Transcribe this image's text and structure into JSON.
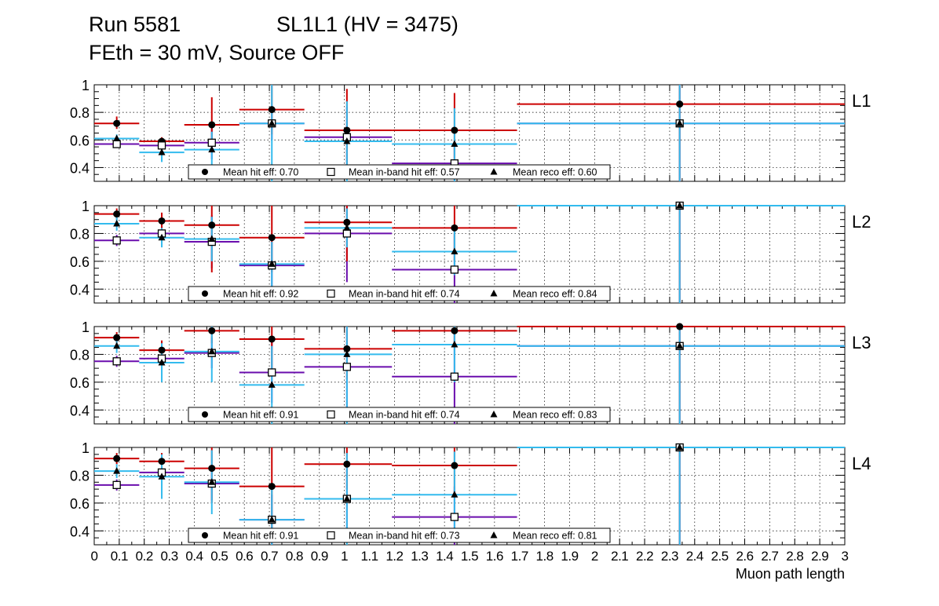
{
  "header": {
    "run": "Run 5581",
    "sl": "SL1L1 (HV = 3475)",
    "line2": "FEth = 30 mV, Source OFF"
  },
  "colors": {
    "hit": "#cc0000",
    "inband": "#6a0dad",
    "reco": "#33bbee",
    "grid": "#000000"
  },
  "chart_data": {
    "type": "scatter",
    "xlabel": "Muon path length",
    "xlim": [
      0,
      3
    ],
    "ylim": [
      0.3,
      1.0
    ],
    "x_tick_labels": [
      "0",
      "0.1",
      "0.2",
      "0.3",
      "0.4",
      "0.5",
      "0.6",
      "0.7",
      "0.8",
      "0.9",
      "1",
      "1.1",
      "1.2",
      "1.3",
      "1.4",
      "1.5",
      "1.6",
      "1.7",
      "1.8",
      "1.9",
      "2",
      "2.1",
      "2.2",
      "2.3",
      "2.4",
      "2.5",
      "2.6",
      "2.7",
      "2.8",
      "2.9",
      "3"
    ],
    "y_tick_labels": [
      "0.4",
      "0.6",
      "0.8",
      "1"
    ],
    "legend_labels": {
      "hit": "Mean hit  eff:",
      "inband": "Mean in-band hit eff:",
      "reco": "Mean reco eff:"
    },
    "panels": [
      {
        "name": "L1",
        "mean_hit": "0.70",
        "mean_inband": "0.57",
        "mean_reco": "0.60",
        "hit": [
          {
            "x": 0.09,
            "x0": 0.0,
            "x1": 0.18,
            "y": 0.72,
            "elo": 0.68,
            "ehi": 0.77
          },
          {
            "x": 0.27,
            "x0": 0.18,
            "x1": 0.36,
            "y": 0.59,
            "elo": 0.56,
            "ehi": 0.62
          },
          {
            "x": 0.47,
            "x0": 0.36,
            "x1": 0.58,
            "y": 0.71,
            "elo": 0.51,
            "ehi": 0.91
          },
          {
            "x": 0.71,
            "x0": 0.58,
            "x1": 0.84,
            "y": 0.82,
            "elo": 0.64,
            "ehi": 1.0
          },
          {
            "x": 1.01,
            "x0": 0.84,
            "x1": 1.19,
            "y": 0.67,
            "elo": 0.37,
            "ehi": 0.97
          },
          {
            "x": 1.44,
            "x0": 1.19,
            "x1": 1.69,
            "y": 0.67,
            "elo": 0.4,
            "ehi": 0.94
          },
          {
            "x": 2.34,
            "x0": 1.69,
            "x1": 3.0,
            "y": 0.86,
            "elo": 0.3,
            "ehi": 1.0
          }
        ],
        "inband": [
          {
            "x": 0.09,
            "x0": 0.0,
            "x1": 0.18,
            "y": 0.57,
            "elo": 0.55,
            "ehi": 0.6
          },
          {
            "x": 0.27,
            "x0": 0.18,
            "x1": 0.36,
            "y": 0.56,
            "elo": 0.53,
            "ehi": 0.59
          },
          {
            "x": 0.47,
            "x0": 0.36,
            "x1": 0.58,
            "y": 0.58,
            "elo": 0.46,
            "ehi": 0.7
          },
          {
            "x": 0.71,
            "x0": 0.58,
            "x1": 0.84,
            "y": 0.72,
            "elo": 0.6,
            "ehi": 0.84
          },
          {
            "x": 1.01,
            "x0": 0.84,
            "x1": 1.19,
            "y": 0.62,
            "elo": 0.4,
            "ehi": 0.84
          },
          {
            "x": 1.44,
            "x0": 1.19,
            "x1": 1.69,
            "y": 0.43,
            "elo": 0.3,
            "ehi": 0.56
          },
          {
            "x": 2.34,
            "x0": 1.69,
            "x1": 3.0,
            "y": 0.72,
            "elo": 0.3,
            "ehi": 1.0
          }
        ],
        "reco": [
          {
            "x": 0.09,
            "x0": 0.0,
            "x1": 0.18,
            "y": 0.61,
            "elo": 0.58,
            "ehi": 0.64
          },
          {
            "x": 0.27,
            "x0": 0.18,
            "x1": 0.36,
            "y": 0.51,
            "elo": 0.44,
            "ehi": 0.58
          },
          {
            "x": 0.47,
            "x0": 0.36,
            "x1": 0.58,
            "y": 0.53,
            "elo": 0.4,
            "ehi": 0.66
          },
          {
            "x": 0.71,
            "x0": 0.58,
            "x1": 0.84,
            "y": 0.72,
            "elo": 0.3,
            "ehi": 1.0
          },
          {
            "x": 1.01,
            "x0": 0.84,
            "x1": 1.19,
            "y": 0.59,
            "elo": 0.3,
            "ehi": 0.88
          },
          {
            "x": 1.44,
            "x0": 1.19,
            "x1": 1.69,
            "y": 0.57,
            "elo": 0.3,
            "ehi": 0.83
          },
          {
            "x": 2.34,
            "x0": 1.69,
            "x1": 3.0,
            "y": 0.72,
            "elo": 0.3,
            "ehi": 1.0
          }
        ]
      },
      {
        "name": "L2",
        "mean_hit": "0.92",
        "mean_inband": "0.74",
        "mean_reco": "0.84",
        "hit": [
          {
            "x": 0.09,
            "x0": 0.0,
            "x1": 0.18,
            "y": 0.94,
            "elo": 0.9,
            "ehi": 0.98
          },
          {
            "x": 0.27,
            "x0": 0.18,
            "x1": 0.36,
            "y": 0.89,
            "elo": 0.83,
            "ehi": 0.95
          },
          {
            "x": 0.47,
            "x0": 0.36,
            "x1": 0.58,
            "y": 0.86,
            "elo": 0.52,
            "ehi": 1.0
          },
          {
            "x": 0.71,
            "x0": 0.58,
            "x1": 0.84,
            "y": 0.77,
            "elo": 0.52,
            "ehi": 1.0
          },
          {
            "x": 1.01,
            "x0": 0.84,
            "x1": 1.19,
            "y": 0.88,
            "elo": 0.6,
            "ehi": 1.0
          },
          {
            "x": 1.44,
            "x0": 1.19,
            "x1": 1.69,
            "y": 0.84,
            "elo": 0.6,
            "ehi": 1.0
          },
          {
            "x": 2.34,
            "x0": 1.69,
            "x1": 3.0,
            "y": 1.0,
            "elo": 0.3,
            "ehi": 1.0
          }
        ],
        "inband": [
          {
            "x": 0.09,
            "x0": 0.0,
            "x1": 0.18,
            "y": 0.75,
            "elo": 0.71,
            "ehi": 0.79
          },
          {
            "x": 0.27,
            "x0": 0.18,
            "x1": 0.36,
            "y": 0.8,
            "elo": 0.75,
            "ehi": 0.85
          },
          {
            "x": 0.47,
            "x0": 0.36,
            "x1": 0.58,
            "y": 0.74,
            "elo": 0.55,
            "ehi": 0.93
          },
          {
            "x": 0.71,
            "x0": 0.58,
            "x1": 0.84,
            "y": 0.57,
            "elo": 0.4,
            "ehi": 0.74
          },
          {
            "x": 1.01,
            "x0": 0.84,
            "x1": 1.19,
            "y": 0.8,
            "elo": 0.45,
            "ehi": 1.0
          },
          {
            "x": 1.44,
            "x0": 1.19,
            "x1": 1.69,
            "y": 0.54,
            "elo": 0.3,
            "ehi": 0.8
          },
          {
            "x": 2.34,
            "x0": 1.69,
            "x1": 3.0,
            "y": 1.0,
            "elo": 0.3,
            "ehi": 1.0
          }
        ],
        "reco": [
          {
            "x": 0.09,
            "x0": 0.0,
            "x1": 0.18,
            "y": 0.87,
            "elo": 0.82,
            "ehi": 0.92
          },
          {
            "x": 0.27,
            "x0": 0.18,
            "x1": 0.36,
            "y": 0.77,
            "elo": 0.7,
            "ehi": 0.84
          },
          {
            "x": 0.47,
            "x0": 0.36,
            "x1": 0.58,
            "y": 0.76,
            "elo": 0.6,
            "ehi": 0.92
          },
          {
            "x": 0.71,
            "x0": 0.58,
            "x1": 0.84,
            "y": 0.58,
            "elo": 0.42,
            "ehi": 0.74
          },
          {
            "x": 1.01,
            "x0": 0.84,
            "x1": 1.19,
            "y": 0.84,
            "elo": 0.7,
            "ehi": 0.98
          },
          {
            "x": 1.44,
            "x0": 1.19,
            "x1": 1.69,
            "y": 0.67,
            "elo": 0.5,
            "ehi": 0.84
          },
          {
            "x": 2.34,
            "x0": 1.69,
            "x1": 3.0,
            "y": 1.0,
            "elo": 0.3,
            "ehi": 1.0
          }
        ]
      },
      {
        "name": "L3",
        "mean_hit": "0.91",
        "mean_inband": "0.74",
        "mean_reco": "0.83",
        "hit": [
          {
            "x": 0.09,
            "x0": 0.0,
            "x1": 0.18,
            "y": 0.92,
            "elo": 0.88,
            "ehi": 0.96
          },
          {
            "x": 0.27,
            "x0": 0.18,
            "x1": 0.36,
            "y": 0.83,
            "elo": 0.76,
            "ehi": 0.9
          },
          {
            "x": 0.47,
            "x0": 0.36,
            "x1": 0.58,
            "y": 0.97,
            "elo": 0.88,
            "ehi": 1.0
          },
          {
            "x": 0.71,
            "x0": 0.58,
            "x1": 0.84,
            "y": 0.91,
            "elo": 0.7,
            "ehi": 1.0
          },
          {
            "x": 1.01,
            "x0": 0.84,
            "x1": 1.19,
            "y": 0.84,
            "elo": 0.62,
            "ehi": 1.0
          },
          {
            "x": 1.44,
            "x0": 1.19,
            "x1": 1.69,
            "y": 0.97,
            "elo": 0.85,
            "ehi": 1.0
          },
          {
            "x": 2.34,
            "x0": 1.69,
            "x1": 3.0,
            "y": 1.0,
            "elo": 0.3,
            "ehi": 1.0
          }
        ],
        "inband": [
          {
            "x": 0.09,
            "x0": 0.0,
            "x1": 0.18,
            "y": 0.75,
            "elo": 0.71,
            "ehi": 0.79
          },
          {
            "x": 0.27,
            "x0": 0.18,
            "x1": 0.36,
            "y": 0.77,
            "elo": 0.72,
            "ehi": 0.82
          },
          {
            "x": 0.47,
            "x0": 0.36,
            "x1": 0.58,
            "y": 0.81,
            "elo": 0.7,
            "ehi": 0.92
          },
          {
            "x": 0.71,
            "x0": 0.58,
            "x1": 0.84,
            "y": 0.67,
            "elo": 0.45,
            "ehi": 0.89
          },
          {
            "x": 1.01,
            "x0": 0.84,
            "x1": 1.19,
            "y": 0.71,
            "elo": 0.4,
            "ehi": 1.0
          },
          {
            "x": 1.44,
            "x0": 1.19,
            "x1": 1.69,
            "y": 0.64,
            "elo": 0.3,
            "ehi": 0.95
          },
          {
            "x": 2.34,
            "x0": 1.69,
            "x1": 3.0,
            "y": 0.86,
            "elo": 0.3,
            "ehi": 1.0
          }
        ],
        "reco": [
          {
            "x": 0.09,
            "x0": 0.0,
            "x1": 0.18,
            "y": 0.86,
            "elo": 0.81,
            "ehi": 0.91
          },
          {
            "x": 0.27,
            "x0": 0.18,
            "x1": 0.36,
            "y": 0.74,
            "elo": 0.6,
            "ehi": 0.88
          },
          {
            "x": 0.47,
            "x0": 0.36,
            "x1": 0.58,
            "y": 0.82,
            "elo": 0.6,
            "ehi": 1.0
          },
          {
            "x": 0.71,
            "x0": 0.58,
            "x1": 0.84,
            "y": 0.58,
            "elo": 0.3,
            "ehi": 0.86
          },
          {
            "x": 1.01,
            "x0": 0.84,
            "x1": 1.19,
            "y": 0.8,
            "elo": 0.3,
            "ehi": 1.0
          },
          {
            "x": 1.44,
            "x0": 1.19,
            "x1": 1.69,
            "y": 0.87,
            "elo": 0.6,
            "ehi": 1.0
          },
          {
            "x": 2.34,
            "x0": 1.69,
            "x1": 3.0,
            "y": 0.86,
            "elo": 0.3,
            "ehi": 1.0
          }
        ]
      },
      {
        "name": "L4",
        "mean_hit": "0.91",
        "mean_inband": "0.73",
        "mean_reco": "0.81",
        "hit": [
          {
            "x": 0.09,
            "x0": 0.0,
            "x1": 0.18,
            "y": 0.92,
            "elo": 0.88,
            "ehi": 0.96
          },
          {
            "x": 0.27,
            "x0": 0.18,
            "x1": 0.36,
            "y": 0.9,
            "elo": 0.84,
            "ehi": 0.96
          },
          {
            "x": 0.47,
            "x0": 0.36,
            "x1": 0.58,
            "y": 0.85,
            "elo": 0.6,
            "ehi": 1.0
          },
          {
            "x": 0.71,
            "x0": 0.58,
            "x1": 0.84,
            "y": 0.72,
            "elo": 0.4,
            "ehi": 1.0
          },
          {
            "x": 1.01,
            "x0": 0.84,
            "x1": 1.19,
            "y": 0.88,
            "elo": 0.7,
            "ehi": 1.0
          },
          {
            "x": 1.44,
            "x0": 1.19,
            "x1": 1.69,
            "y": 0.87,
            "elo": 0.65,
            "ehi": 1.0
          },
          {
            "x": 2.34,
            "x0": 1.69,
            "x1": 3.0,
            "y": 1.0,
            "elo": 0.3,
            "ehi": 1.0
          }
        ],
        "inband": [
          {
            "x": 0.09,
            "x0": 0.0,
            "x1": 0.18,
            "y": 0.73,
            "elo": 0.69,
            "ehi": 0.77
          },
          {
            "x": 0.27,
            "x0": 0.18,
            "x1": 0.36,
            "y": 0.82,
            "elo": 0.78,
            "ehi": 0.86
          },
          {
            "x": 0.47,
            "x0": 0.36,
            "x1": 0.58,
            "y": 0.74,
            "elo": 0.62,
            "ehi": 0.86
          },
          {
            "x": 0.71,
            "x0": 0.58,
            "x1": 0.84,
            "y": 0.48,
            "elo": 0.3,
            "ehi": 0.66
          },
          {
            "x": 1.01,
            "x0": 0.84,
            "x1": 1.19,
            "y": 0.63,
            "elo": 0.4,
            "ehi": 0.86
          },
          {
            "x": 1.44,
            "x0": 1.19,
            "x1": 1.69,
            "y": 0.5,
            "elo": 0.3,
            "ehi": 0.72
          },
          {
            "x": 2.34,
            "x0": 1.69,
            "x1": 3.0,
            "y": 1.0,
            "elo": 0.3,
            "ehi": 1.0
          }
        ],
        "reco": [
          {
            "x": 0.09,
            "x0": 0.0,
            "x1": 0.18,
            "y": 0.83,
            "elo": 0.78,
            "ehi": 0.88
          },
          {
            "x": 0.27,
            "x0": 0.18,
            "x1": 0.36,
            "y": 0.79,
            "elo": 0.63,
            "ehi": 0.95
          },
          {
            "x": 0.47,
            "x0": 0.36,
            "x1": 0.58,
            "y": 0.75,
            "elo": 0.52,
            "ehi": 0.98
          },
          {
            "x": 0.71,
            "x0": 0.58,
            "x1": 0.84,
            "y": 0.48,
            "elo": 0.3,
            "ehi": 0.7
          },
          {
            "x": 1.01,
            "x0": 0.84,
            "x1": 1.19,
            "y": 0.63,
            "elo": 0.3,
            "ehi": 0.96
          },
          {
            "x": 1.44,
            "x0": 1.19,
            "x1": 1.69,
            "y": 0.66,
            "elo": 0.35,
            "ehi": 0.97
          },
          {
            "x": 2.34,
            "x0": 1.69,
            "x1": 3.0,
            "y": 1.0,
            "elo": 0.3,
            "ehi": 1.0
          }
        ]
      }
    ]
  }
}
